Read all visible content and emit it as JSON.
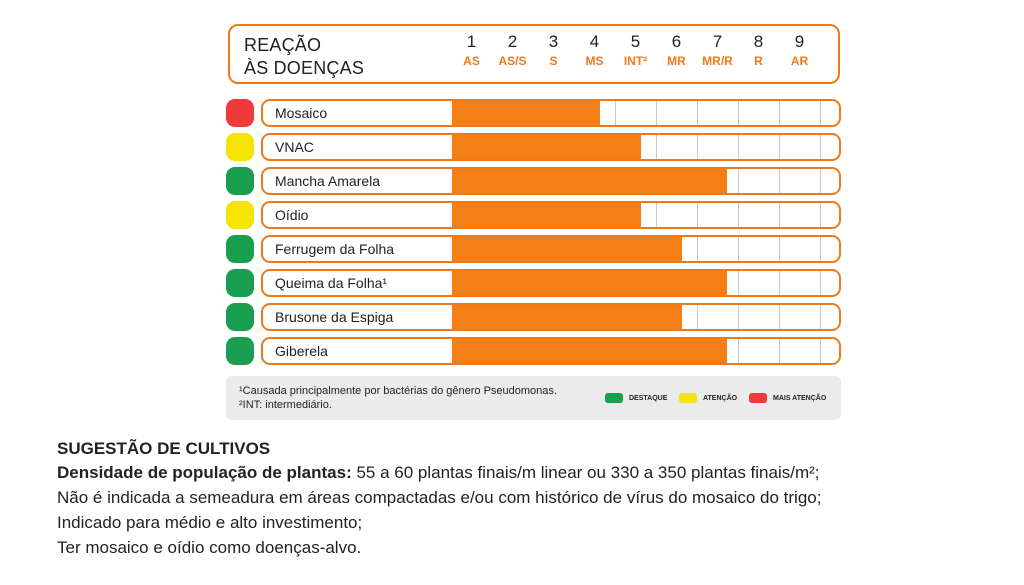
{
  "colors": {
    "orange": "#f07a1a",
    "bar": "#f57f17",
    "green": "#1a9e4f",
    "yellow": "#f5e400",
    "red": "#f03a3a"
  },
  "header": {
    "title_line1": "REAÇÃO",
    "title_line2": "ÀS DOENÇAS"
  },
  "chart_data": {
    "type": "bar",
    "title": "REAÇÃO ÀS DOENÇAS",
    "scale": [
      {
        "number": "1",
        "code": "AS"
      },
      {
        "number": "2",
        "code": "AS/S"
      },
      {
        "number": "3",
        "code": "S"
      },
      {
        "number": "4",
        "code": "MS"
      },
      {
        "number": "5",
        "code": "INT²"
      },
      {
        "number": "6",
        "code": "MR"
      },
      {
        "number": "7",
        "code": "MR/R"
      },
      {
        "number": "8",
        "code": "R"
      },
      {
        "number": "9",
        "code": "AR"
      }
    ],
    "xlim": [
      0,
      9
    ],
    "categories": [
      "Mosaico",
      "VNAC",
      "Mancha Amarela",
      "Oídio",
      "Ferrugem da Folha",
      "Queima da Folha¹",
      "Brusone da Espiga",
      "Giberela"
    ],
    "values": [
      3.6,
      4.6,
      6.7,
      4.6,
      5.6,
      6.7,
      5.6,
      6.7
    ],
    "status": [
      "red",
      "yellow",
      "green",
      "yellow",
      "green",
      "green",
      "green",
      "green"
    ]
  },
  "footnotes": {
    "note1": "¹Causada principalmente por bactérias do gênero Pseudomonas.",
    "note2": "²INT: intermediário."
  },
  "legend": [
    {
      "label": "DESTAQUE",
      "color": "#1a9e4f"
    },
    {
      "label": "ATENÇÃO",
      "color": "#f5e400"
    },
    {
      "label": "MAIS ATENÇÃO",
      "color": "#f03a3a"
    }
  ],
  "suggestions": {
    "heading": "SUGESTÃO DE CULTIVOS",
    "density_label": "Densidade de população de plantas:",
    "density_value": " 55 a 60 plantas finais/m linear ou 330 a 350 plantas finais/m²;",
    "line2": "Não é indicada a semeadura em áreas compactadas e/ou com histórico de vírus do mosaico do trigo;",
    "line3": "Indicado para médio e alto investimento;",
    "line4": "Ter mosaico e oídio como doenças-alvo."
  }
}
